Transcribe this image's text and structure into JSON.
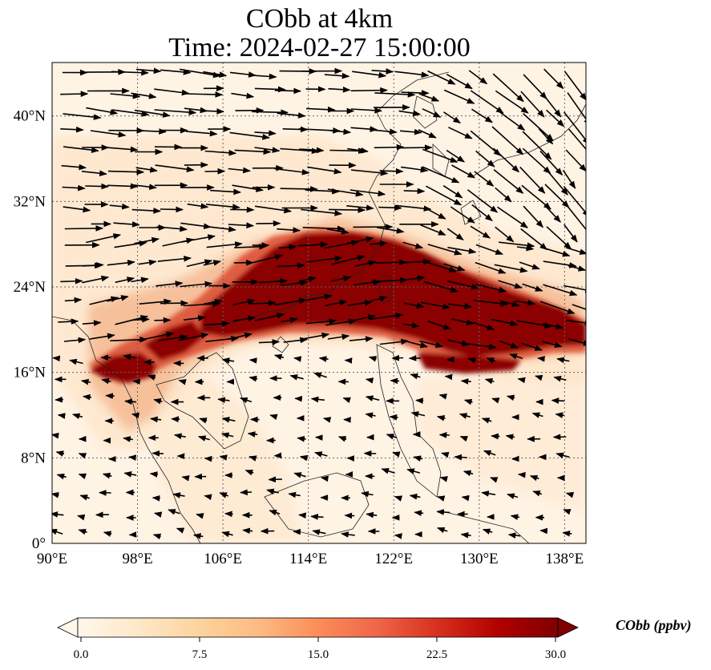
{
  "title": {
    "line1": "CObb at 4km",
    "line2": "Time: 2024-02-27 15:00:00"
  },
  "map": {
    "lon_range": [
      90,
      140
    ],
    "lat_range": [
      0,
      45
    ],
    "lon_ticks": [
      {
        "value": 90,
        "label": "90°E"
      },
      {
        "value": 98,
        "label": "98°E"
      },
      {
        "value": 106,
        "label": "106°E"
      },
      {
        "value": 114,
        "label": "114°E"
      },
      {
        "value": 122,
        "label": "122°E"
      },
      {
        "value": 130,
        "label": "130°E"
      },
      {
        "value": 138,
        "label": "138°E"
      }
    ],
    "lat_ticks": [
      {
        "value": 0,
        "label": "0°"
      },
      {
        "value": 8,
        "label": "8°N"
      },
      {
        "value": 16,
        "label": "16°N"
      },
      {
        "value": 24,
        "label": "24°N"
      },
      {
        "value": 32,
        "label": "32°N"
      },
      {
        "value": 40,
        "label": "40°N"
      }
    ],
    "gridlines": true,
    "field_colors": {
      "background": "#fff3e4",
      "light": "#fde0c0",
      "medium": "#f0a070",
      "strong": "#d8442c",
      "max": "#8b0000"
    }
  },
  "colorbar": {
    "label": "CObb (ppbv)",
    "range": [
      0,
      30
    ],
    "extend": "both",
    "ticks": [
      {
        "value": 0,
        "label": "0.0"
      },
      {
        "value": 7.5,
        "label": "7.5"
      },
      {
        "value": 15,
        "label": "15.0"
      },
      {
        "value": 22.5,
        "label": "22.5"
      },
      {
        "value": 30,
        "label": "30.0"
      }
    ],
    "stops": [
      "#fff7ec",
      "#fee8c8",
      "#fdd49e",
      "#fdbb84",
      "#fc8d59",
      "#ef6548",
      "#d7301f",
      "#b30000",
      "#7f0000"
    ]
  }
}
